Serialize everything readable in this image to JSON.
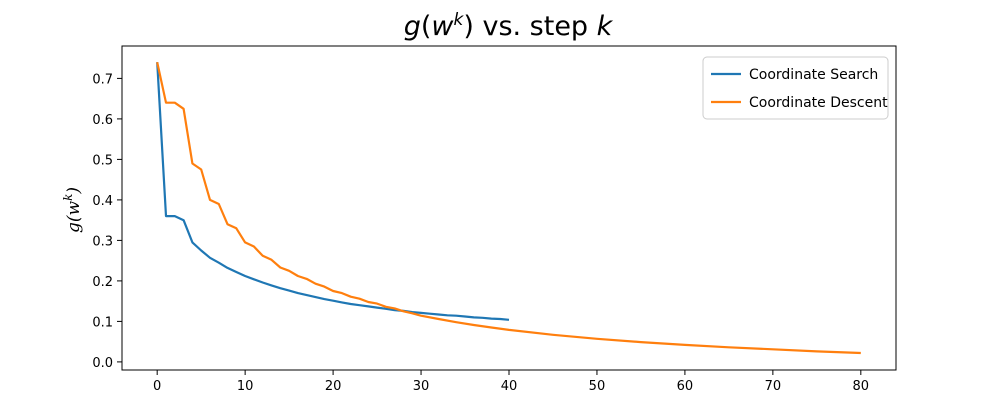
{
  "chart_data": {
    "type": "line",
    "title": "g(w^k) vs. step k",
    "xlabel": "",
    "ylabel": "g(w^k)",
    "xlim": [
      -4,
      84
    ],
    "ylim": [
      -0.02,
      0.78
    ],
    "xticks": [
      "0",
      "10",
      "20",
      "30",
      "40",
      "50",
      "60",
      "70",
      "80"
    ],
    "yticks": [
      "0.0",
      "0.1",
      "0.2",
      "0.3",
      "0.4",
      "0.5",
      "0.6",
      "0.7"
    ],
    "legend_position": "top-right",
    "series": [
      {
        "name": "Coordinate Search",
        "color": "#1f77b4",
        "x": [
          0,
          1,
          2,
          3,
          4,
          5,
          6,
          7,
          8,
          9,
          10,
          11,
          12,
          13,
          14,
          15,
          16,
          17,
          18,
          19,
          20,
          21,
          22,
          23,
          24,
          25,
          26,
          27,
          28,
          29,
          30,
          31,
          32,
          33,
          34,
          35,
          36,
          37,
          38,
          39,
          40
        ],
        "y": [
          0.74,
          0.36,
          0.36,
          0.35,
          0.295,
          0.275,
          0.257,
          0.245,
          0.232,
          0.222,
          0.212,
          0.204,
          0.196,
          0.189,
          0.182,
          0.176,
          0.17,
          0.165,
          0.16,
          0.155,
          0.151,
          0.147,
          0.143,
          0.14,
          0.137,
          0.134,
          0.131,
          0.128,
          0.126,
          0.123,
          0.121,
          0.119,
          0.117,
          0.115,
          0.114,
          0.112,
          0.11,
          0.109,
          0.107,
          0.106,
          0.104
        ]
      },
      {
        "name": "Coordinate Descent",
        "color": "#ff7f0e",
        "x": [
          0,
          1,
          2,
          3,
          4,
          5,
          6,
          7,
          8,
          9,
          10,
          11,
          12,
          13,
          14,
          15,
          16,
          17,
          18,
          19,
          20,
          21,
          22,
          23,
          24,
          25,
          26,
          27,
          28,
          29,
          30,
          32,
          34,
          36,
          38,
          40,
          45,
          50,
          55,
          60,
          65,
          70,
          75,
          80
        ],
        "y": [
          0.74,
          0.64,
          0.64,
          0.625,
          0.49,
          0.475,
          0.4,
          0.39,
          0.34,
          0.33,
          0.295,
          0.285,
          0.262,
          0.252,
          0.233,
          0.225,
          0.212,
          0.205,
          0.193,
          0.186,
          0.175,
          0.17,
          0.161,
          0.156,
          0.148,
          0.144,
          0.136,
          0.132,
          0.125,
          0.12,
          0.114,
          0.106,
          0.098,
          0.091,
          0.085,
          0.079,
          0.067,
          0.057,
          0.049,
          0.042,
          0.036,
          0.031,
          0.026,
          0.022
        ]
      }
    ]
  }
}
